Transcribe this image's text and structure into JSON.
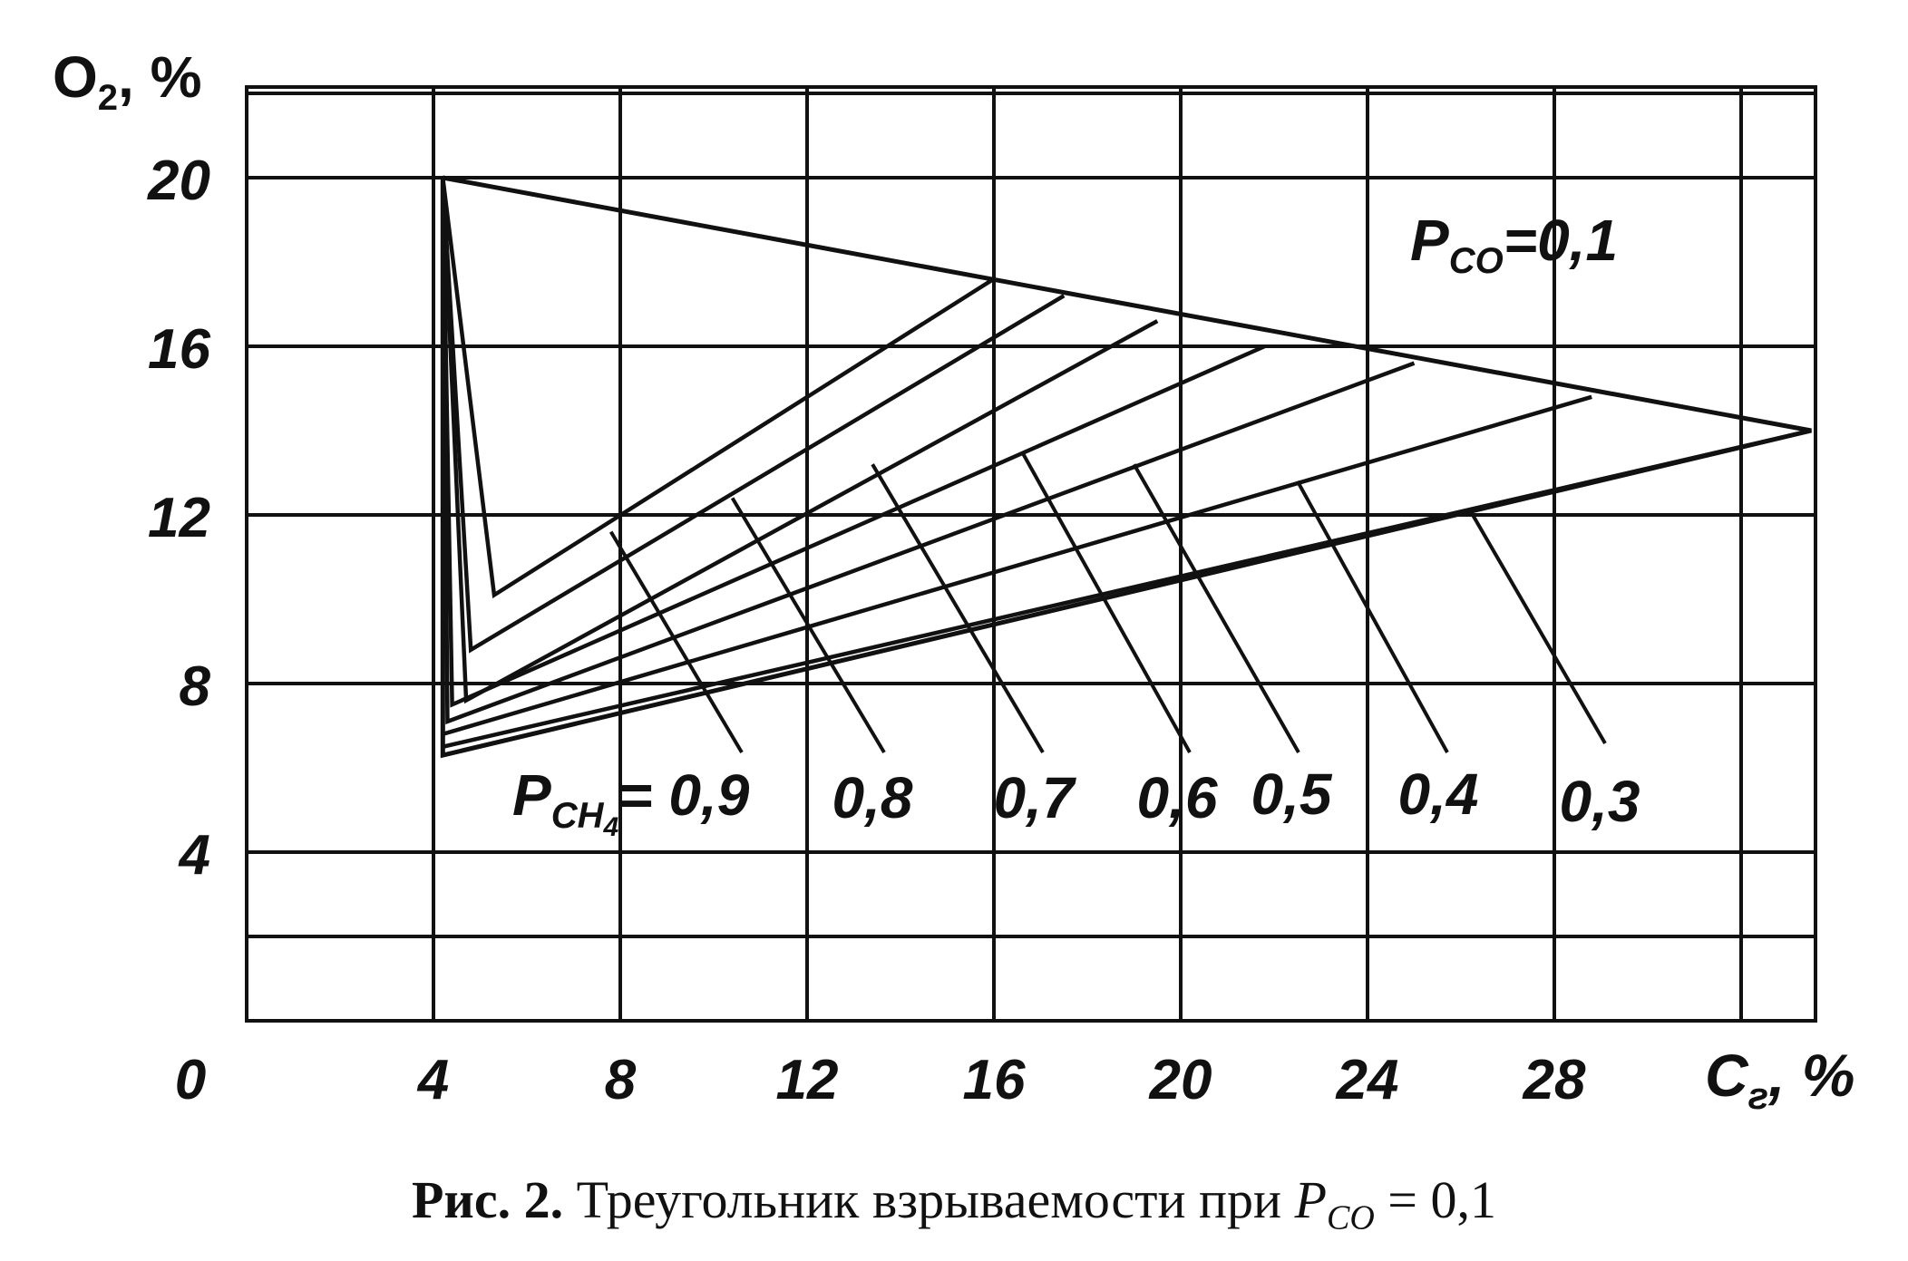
{
  "chart_data": {
    "type": "line",
    "title": "",
    "xlabel": {
      "main": "C",
      "sub": "г",
      "suffix": ", %"
    },
    "ylabel": {
      "main": "O",
      "sub": "2",
      "suffix": ", %"
    },
    "xlim": [
      0,
      34
    ],
    "ylim": [
      0,
      22
    ],
    "x_ticks": [
      0,
      4,
      8,
      12,
      16,
      20,
      24,
      28
    ],
    "y_ticks": [
      4,
      8,
      12,
      16,
      20
    ],
    "x_grid": [
      4,
      8,
      12,
      16,
      20,
      24,
      28,
      32,
      34
    ],
    "y_grid": [
      2,
      4,
      8,
      12,
      16,
      20,
      22
    ],
    "grid": true,
    "boundary": {
      "name": "P_CO = 0,1",
      "x": [
        4.2,
        33.5,
        4.2,
        4.2
      ],
      "y": [
        20,
        14.0,
        6.3,
        20
      ]
    },
    "series": [
      {
        "name": "0,9",
        "x": [
          4.2,
          5.3,
          16.0
        ],
        "y": [
          20,
          10.1,
          17.6
        ],
        "label_anchor": [
          7.8,
          11.6
        ]
      },
      {
        "name": "0,8",
        "x": [
          4.2,
          4.8,
          17.5
        ],
        "y": [
          20,
          8.8,
          17.2
        ],
        "label_anchor": [
          10.4,
          12.4
        ]
      },
      {
        "name": "0,7",
        "x": [
          4.2,
          4.7,
          19.5
        ],
        "y": [
          20,
          7.6,
          16.6
        ],
        "label_anchor": [
          13.4,
          13.2
        ]
      },
      {
        "name": "0,6",
        "x": [
          4.2,
          4.4,
          21.8
        ],
        "y": [
          20,
          7.5,
          16.0
        ],
        "label_anchor": [
          16.6,
          13.5
        ]
      },
      {
        "name": "0,5",
        "x": [
          4.2,
          4.3,
          25.0
        ],
        "y": [
          20,
          7.1,
          15.6
        ],
        "label_anchor": [
          19.0,
          13.2
        ]
      },
      {
        "name": "0,4",
        "x": [
          4.2,
          4.2,
          28.8
        ],
        "y": [
          20,
          6.8,
          14.8
        ],
        "label_anchor": [
          22.5,
          12.8
        ]
      },
      {
        "name": "0,3",
        "x": [
          4.2,
          4.2,
          33.5
        ],
        "y": [
          20,
          6.5,
          14.0
        ],
        "label_anchor": [
          26.2,
          12.1
        ]
      }
    ],
    "annotations": {
      "pco_label": {
        "main": "P",
        "sub": "CO",
        "value": "=0,1"
      },
      "pch4_prefix": {
        "main": "P",
        "sub": "CH",
        "subsub": "4",
        "value": "= 0,9"
      },
      "labels": [
        "0,9",
        "0,8",
        "0,7",
        "0,6",
        "0,5",
        "0,4",
        "0,3"
      ]
    }
  },
  "caption": {
    "bold": "Рис. 2.",
    "text": " Треугольник взрываемости при ",
    "var_main": "P",
    "var_sub": "CO",
    "tail": " = 0,1"
  }
}
